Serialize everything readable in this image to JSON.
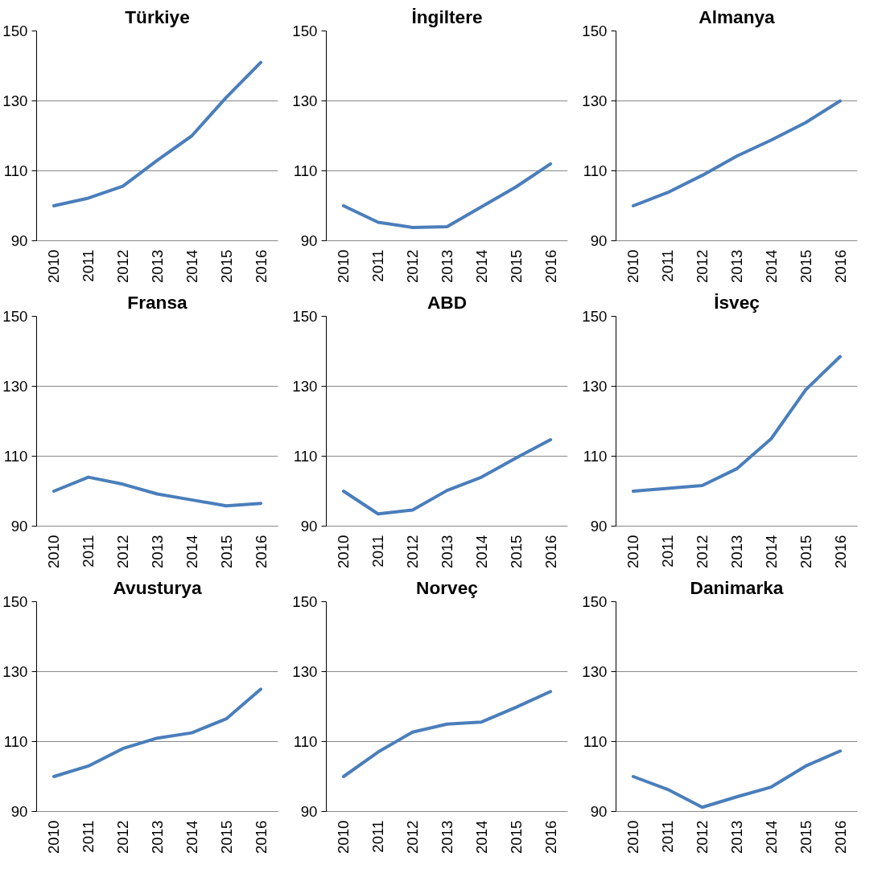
{
  "chart_data": [
    {
      "type": "line",
      "title": "Türkiye",
      "categories": [
        "2010",
        "2011",
        "2012",
        "2013",
        "2014",
        "2015",
        "2016"
      ],
      "series": [
        {
          "color": "#4a7ebb",
          "values": [
            100,
            102.2,
            105.6,
            113,
            120,
            131,
            141
          ]
        }
      ],
      "ylim": [
        90,
        150
      ],
      "yticks": [
        90,
        110,
        130,
        150
      ],
      "grid": "y"
    },
    {
      "type": "line",
      "title": "İngiltere",
      "categories": [
        "2010",
        "2011",
        "2012",
        "2013",
        "2014",
        "2015",
        "2016"
      ],
      "series": [
        {
          "color": "#4a7ebb",
          "values": [
            100,
            95.3,
            93.8,
            94,
            99.7,
            105.4,
            112
          ]
        }
      ],
      "ylim": [
        90,
        150
      ],
      "yticks": [
        90,
        110,
        130,
        150
      ],
      "grid": "y"
    },
    {
      "type": "line",
      "title": "Almanya",
      "categories": [
        "2010",
        "2011",
        "2012",
        "2013",
        "2014",
        "2015",
        "2016"
      ],
      "series": [
        {
          "color": "#4a7ebb",
          "values": [
            100,
            103.8,
            108.7,
            114.2,
            118.8,
            123.8,
            130
          ]
        }
      ],
      "ylim": [
        90,
        150
      ],
      "yticks": [
        90,
        110,
        130,
        150
      ],
      "grid": "y"
    },
    {
      "type": "line",
      "title": "Fransa",
      "categories": [
        "2010",
        "2011",
        "2012",
        "2013",
        "2014",
        "2015",
        "2016"
      ],
      "series": [
        {
          "color": "#4a7ebb",
          "values": [
            100,
            104,
            102,
            99.2,
            97.5,
            95.8,
            96.5
          ]
        }
      ],
      "ylim": [
        90,
        150
      ],
      "yticks": [
        90,
        110,
        130,
        150
      ],
      "grid": "y"
    },
    {
      "type": "line",
      "title": "ABD",
      "categories": [
        "2010",
        "2011",
        "2012",
        "2013",
        "2014",
        "2015",
        "2016"
      ],
      "series": [
        {
          "color": "#4a7ebb",
          "values": [
            100,
            93.5,
            94.6,
            100.2,
            104,
            109.5,
            114.7
          ]
        }
      ],
      "ylim": [
        90,
        150
      ],
      "yticks": [
        90,
        110,
        130,
        150
      ],
      "grid": "y"
    },
    {
      "type": "line",
      "title": "İsveç",
      "categories": [
        "2010",
        "2011",
        "2012",
        "2013",
        "2014",
        "2015",
        "2016"
      ],
      "series": [
        {
          "color": "#4a7ebb",
          "values": [
            100,
            100.8,
            101.6,
            106.4,
            115,
            129,
            138.5
          ]
        }
      ],
      "ylim": [
        90,
        150
      ],
      "yticks": [
        90,
        110,
        130,
        150
      ],
      "grid": "y"
    },
    {
      "type": "line",
      "title": "Avusturya",
      "categories": [
        "2010",
        "2011",
        "2012",
        "2013",
        "2014",
        "2015",
        "2016"
      ],
      "series": [
        {
          "color": "#4a7ebb",
          "values": [
            100,
            103,
            108,
            111,
            112.5,
            116.5,
            125
          ]
        }
      ],
      "ylim": [
        90,
        150
      ],
      "yticks": [
        90,
        110,
        130,
        150
      ],
      "grid": "y"
    },
    {
      "type": "line",
      "title": "Norveç",
      "categories": [
        "2010",
        "2011",
        "2012",
        "2013",
        "2014",
        "2015",
        "2016"
      ],
      "series": [
        {
          "color": "#4a7ebb",
          "values": [
            100,
            107,
            112.7,
            115,
            115.6,
            119.8,
            124.3
          ]
        }
      ],
      "ylim": [
        90,
        150
      ],
      "yticks": [
        90,
        110,
        130,
        150
      ],
      "grid": "y"
    },
    {
      "type": "line",
      "title": "Danimarka",
      "categories": [
        "2010",
        "2011",
        "2012",
        "2013",
        "2014",
        "2015",
        "2016"
      ],
      "series": [
        {
          "color": "#4a7ebb",
          "values": [
            100,
            96.3,
            91.2,
            94.2,
            97,
            103,
            107.3
          ]
        }
      ],
      "ylim": [
        90,
        150
      ],
      "yticks": [
        90,
        110,
        130,
        150
      ],
      "grid": "y"
    }
  ]
}
